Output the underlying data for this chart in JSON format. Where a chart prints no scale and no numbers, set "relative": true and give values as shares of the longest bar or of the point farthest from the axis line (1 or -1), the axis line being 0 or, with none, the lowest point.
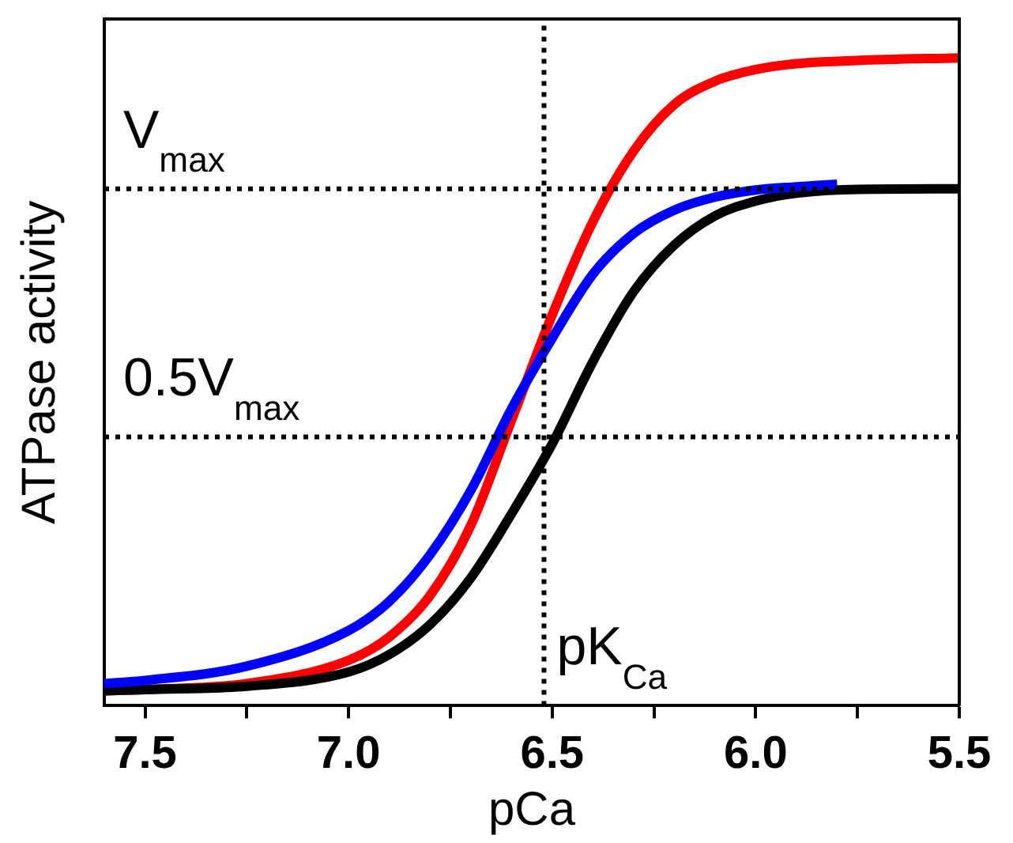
{
  "chart_data": {
    "type": "line",
    "xlabel": "pCa",
    "ylabel": "ATPase activity",
    "relative": true,
    "marker": "none",
    "line_style": "solid",
    "grid": false,
    "legend": false,
    "x": [
      7.6,
      7.5,
      7.25,
      7.0,
      6.9,
      6.8,
      6.7,
      6.6,
      6.5,
      6.4,
      6.3,
      6.2,
      6.1,
      6.0,
      5.9,
      5.75,
      5.5
    ],
    "xlim": [
      7.6,
      5.5
    ],
    "xticks": [
      7.5,
      {
        "value": 7.25,
        "label": null
      },
      "7.0",
      {
        "value": 6.75,
        "label": null
      },
      6.5,
      {
        "value": 6.25,
        "label": null
      },
      "6.0",
      {
        "value": 5.75,
        "label": null
      },
      5.5
    ],
    "series": [
      {
        "color": "#0000ff",
        "x": [
          7.6,
          7.5,
          7.25,
          7.0,
          6.9,
          6.8,
          6.7,
          6.6,
          6.5,
          6.4,
          6.3,
          6.2,
          6.1,
          6.0,
          5.9,
          5.8
        ],
        "values": [
          0.034,
          0.039,
          0.061,
          0.116,
          0.161,
          0.233,
          0.332,
          0.458,
          0.567,
          0.666,
          0.729,
          0.765,
          0.785,
          0.796,
          0.801,
          0.805
        ]
      },
      {
        "color": "#000000",
        "values": [
          0.023,
          0.025,
          0.03,
          0.052,
          0.079,
          0.125,
          0.197,
          0.296,
          0.404,
          0.531,
          0.639,
          0.711,
          0.756,
          0.779,
          0.791,
          0.797,
          0.798
        ]
      },
      {
        "color": "#ff0000",
        "values": [
          0.023,
          0.025,
          0.034,
          0.07,
          0.106,
          0.17,
          0.278,
          0.44,
          0.603,
          0.747,
          0.856,
          0.928,
          0.964,
          0.982,
          0.991,
          0.996,
          1
        ]
      }
    ],
    "ref_lines": [
      {
        "axis": "y",
        "value": 0.798,
        "label": "V$_{max}$",
        "color": "#000000",
        "line_style": "dotted"
      },
      {
        "axis": "y",
        "value": 0.415,
        "label": "0.5V$_{max}$",
        "color": "#000000",
        "line_style": "dotted"
      },
      {
        "axis": "x",
        "value": 6.52,
        "label": "pK$_{Ca}$",
        "color": "#000000",
        "line_style": "dotted"
      }
    ]
  }
}
